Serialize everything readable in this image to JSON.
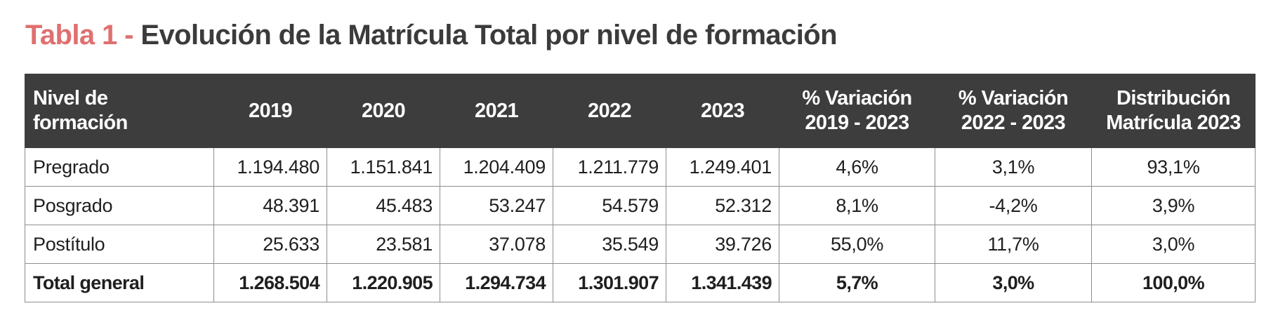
{
  "title": {
    "prefix": "Tabla 1 - ",
    "text": "Evolución de la Matrícula Total por nivel de formación"
  },
  "table": {
    "headers": {
      "level": [
        "Nivel de",
        "formación"
      ],
      "y2019": "2019",
      "y2020": "2020",
      "y2021": "2021",
      "y2022": "2022",
      "y2023": "2023",
      "var1923": [
        "% Variación",
        "2019 - 2023"
      ],
      "var2223": [
        "% Variación",
        "2022 - 2023"
      ],
      "dist": [
        "Distribución",
        "Matrícula 2023"
      ]
    },
    "rows": [
      [
        "Pregrado",
        "1.194.480",
        "1.151.841",
        "1.204.409",
        "1.211.779",
        "1.249.401",
        "4,6%",
        "3,1%",
        "93,1%"
      ],
      [
        "Posgrado",
        "48.391",
        "45.483",
        "53.247",
        "54.579",
        "52.312",
        "8,1%",
        "-4,2%",
        "3,9%"
      ],
      [
        "Postítulo",
        "25.633",
        "23.581",
        "37.078",
        "35.549",
        "39.726",
        "55,0%",
        "11,7%",
        "3,0%"
      ]
    ],
    "total": [
      "Total general",
      "1.268.504",
      "1.220.905",
      "1.294.734",
      "1.301.907",
      "1.341.439",
      "5,7%",
      "3,0%",
      "100,0%"
    ]
  },
  "colors": {
    "title_prefix": "#e07070",
    "title_main": "#3b3b3b",
    "header_bg": "#3d3d3d",
    "header_text": "#ffffff",
    "grid": "#8e8e8e"
  }
}
